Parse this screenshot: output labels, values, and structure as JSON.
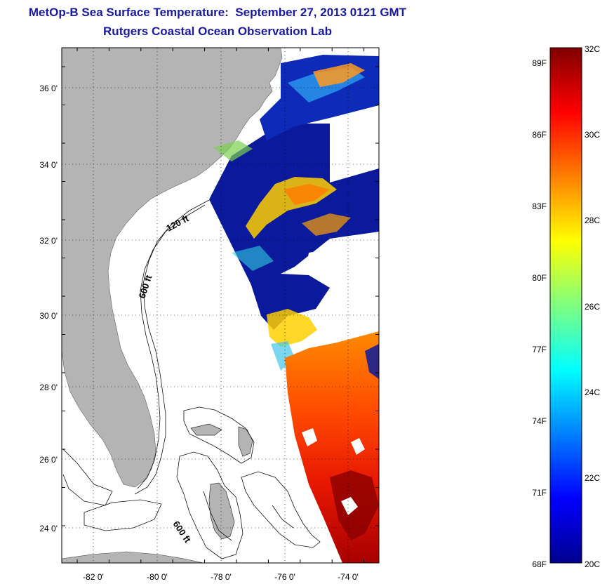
{
  "header": {
    "title": "MetOp-B Sea Surface Temperature:  September 27, 2013 0121 GMT",
    "subtitle": "Rutgers Coastal Ocean Observation Lab"
  },
  "map": {
    "lat_labels": [
      "36 0'",
      "34 0'",
      "32 0'",
      "30 0'",
      "28 0'",
      "26 0'",
      "24 0'"
    ],
    "lon_labels": [
      "-82 0'",
      "-80 0'",
      "-78 0'",
      "-76 0'",
      "-74 0'"
    ],
    "contour_labels": [
      "120 ft",
      "600 ft",
      "600 ft"
    ],
    "land_color": "#b4b4b4",
    "cloud_color": "#ffffff"
  },
  "colorbar": {
    "fahrenheit_labels": [
      "89F",
      "86F",
      "83F",
      "80F",
      "77F",
      "74F",
      "71F",
      "68F"
    ],
    "celsius_labels": [
      "32C",
      "30C",
      "28C",
      "26C",
      "24C",
      "22C",
      "20C"
    ],
    "colormap": "jet"
  }
}
